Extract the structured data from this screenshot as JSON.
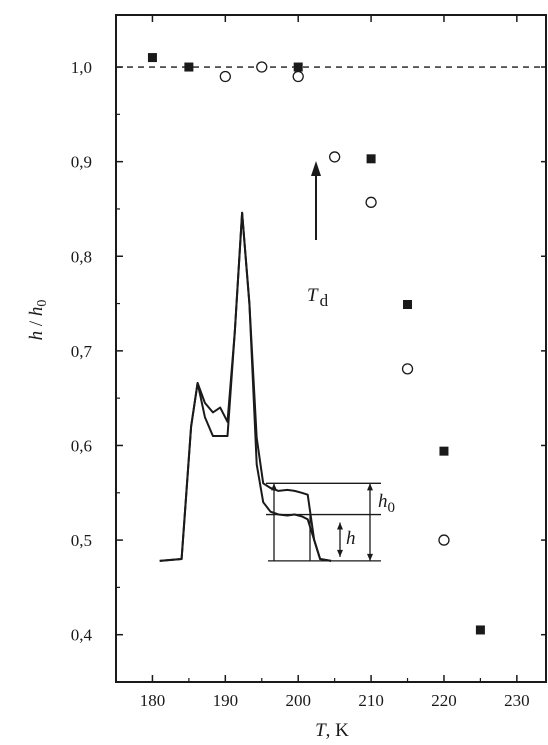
{
  "chart_data": {
    "type": "scatter",
    "xlabel": {
      "var": "T",
      "unit": ", K"
    },
    "ylabel": {
      "num": "h",
      "sep": " / ",
      "den": "h",
      "den_sub": "0"
    },
    "xlim": [
      175,
      234
    ],
    "ylim": [
      0.35,
      1.055
    ],
    "x_ticks": [
      180,
      190,
      200,
      210,
      220,
      230
    ],
    "y_ticks": [
      0.4,
      0.5,
      0.6,
      0.7,
      0.8,
      0.9,
      1.0
    ],
    "x_tick_labels": [
      "180",
      "190",
      "200",
      "210",
      "220",
      "230"
    ],
    "y_tick_labels": [
      "0,4",
      "0,5",
      "0,6",
      "0,7",
      "0,8",
      "0,9",
      "1,0"
    ],
    "reference_line": {
      "y": 1.0,
      "style": "dashed"
    },
    "series": [
      {
        "marker": "filled-square",
        "x": [
          180,
          185,
          200,
          210,
          215,
          220,
          225
        ],
        "y": [
          1.01,
          1.0,
          1.0,
          0.903,
          0.749,
          0.594,
          0.405
        ]
      },
      {
        "marker": "open-circle",
        "x": [
          190,
          195,
          200,
          205,
          210,
          215,
          220
        ],
        "y": [
          0.99,
          1.0,
          0.99,
          0.905,
          0.857,
          0.681,
          0.5
        ]
      }
    ],
    "annotations": {
      "arrow_label": {
        "var": "T",
        "sub": "d"
      },
      "h0_label": {
        "var": "h",
        "sub": "0"
      },
      "h_label": {
        "var": "h"
      }
    },
    "inset_curves": {
      "t": [
        181,
        184,
        185.3,
        186.2,
        187.2,
        188.3,
        189.3,
        190.3,
        191.3,
        192.3,
        193.3,
        194.3,
        195.2,
        196.2,
        197.3,
        198.5,
        199.5,
        200.5,
        201.3,
        202.2,
        203,
        204.5
      ],
      "upper": [
        0.478,
        0.48,
        0.62,
        0.666,
        0.645,
        0.635,
        0.64,
        0.625,
        0.72,
        0.846,
        0.75,
        0.608,
        0.56,
        0.555,
        0.552,
        0.553,
        0.552,
        0.55,
        0.548,
        0.5,
        0.48,
        0.478
      ],
      "lower": [
        0.478,
        0.48,
        0.62,
        0.666,
        0.63,
        0.61,
        0.61,
        0.61,
        0.72,
        0.846,
        0.75,
        0.58,
        0.54,
        0.53,
        0.527,
        0.526,
        0.527,
        0.525,
        0.522,
        0.5,
        0.48,
        0.478
      ]
    }
  }
}
